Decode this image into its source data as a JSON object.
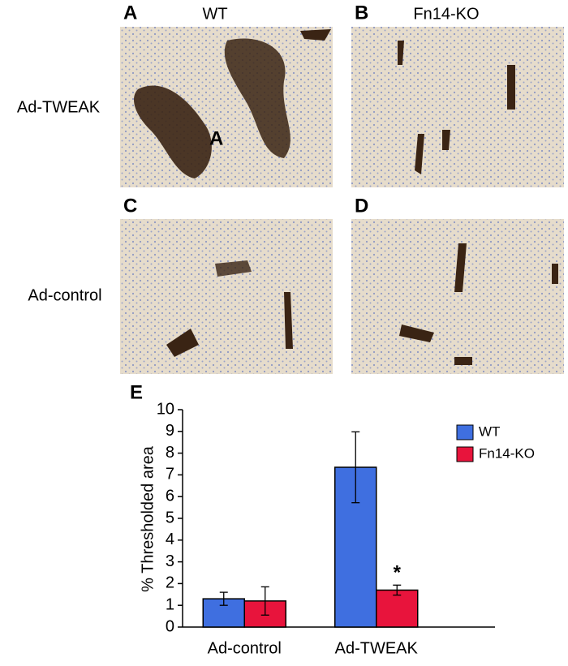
{
  "column_labels": [
    "WT",
    "Fn14-KO"
  ],
  "row_labels": [
    "Ad-TWEAK",
    "Ad-control"
  ],
  "panel_letters": [
    "A",
    "B",
    "C",
    "D"
  ],
  "inset_label": "A",
  "chart_data": {
    "type": "bar",
    "panel_letter": "E",
    "ylabel": "% Thresholded area",
    "categories": [
      "Ad-control",
      "Ad-TWEAK"
    ],
    "series": [
      {
        "name": "WT",
        "color": "#3f6fe0",
        "values": [
          1.3,
          7.35
        ],
        "errors": [
          0.3,
          1.63
        ]
      },
      {
        "name": "Fn14-KO",
        "color": "#e8143c",
        "values": [
          1.2,
          1.7
        ],
        "errors": [
          0.65,
          0.23
        ]
      }
    ],
    "ylim": [
      0,
      10
    ],
    "yticks": [
      0,
      1,
      2,
      3,
      4,
      5,
      6,
      7,
      8,
      9,
      10
    ],
    "legend": "upper right",
    "annotations": [
      {
        "text": "*"
      }
    ]
  }
}
